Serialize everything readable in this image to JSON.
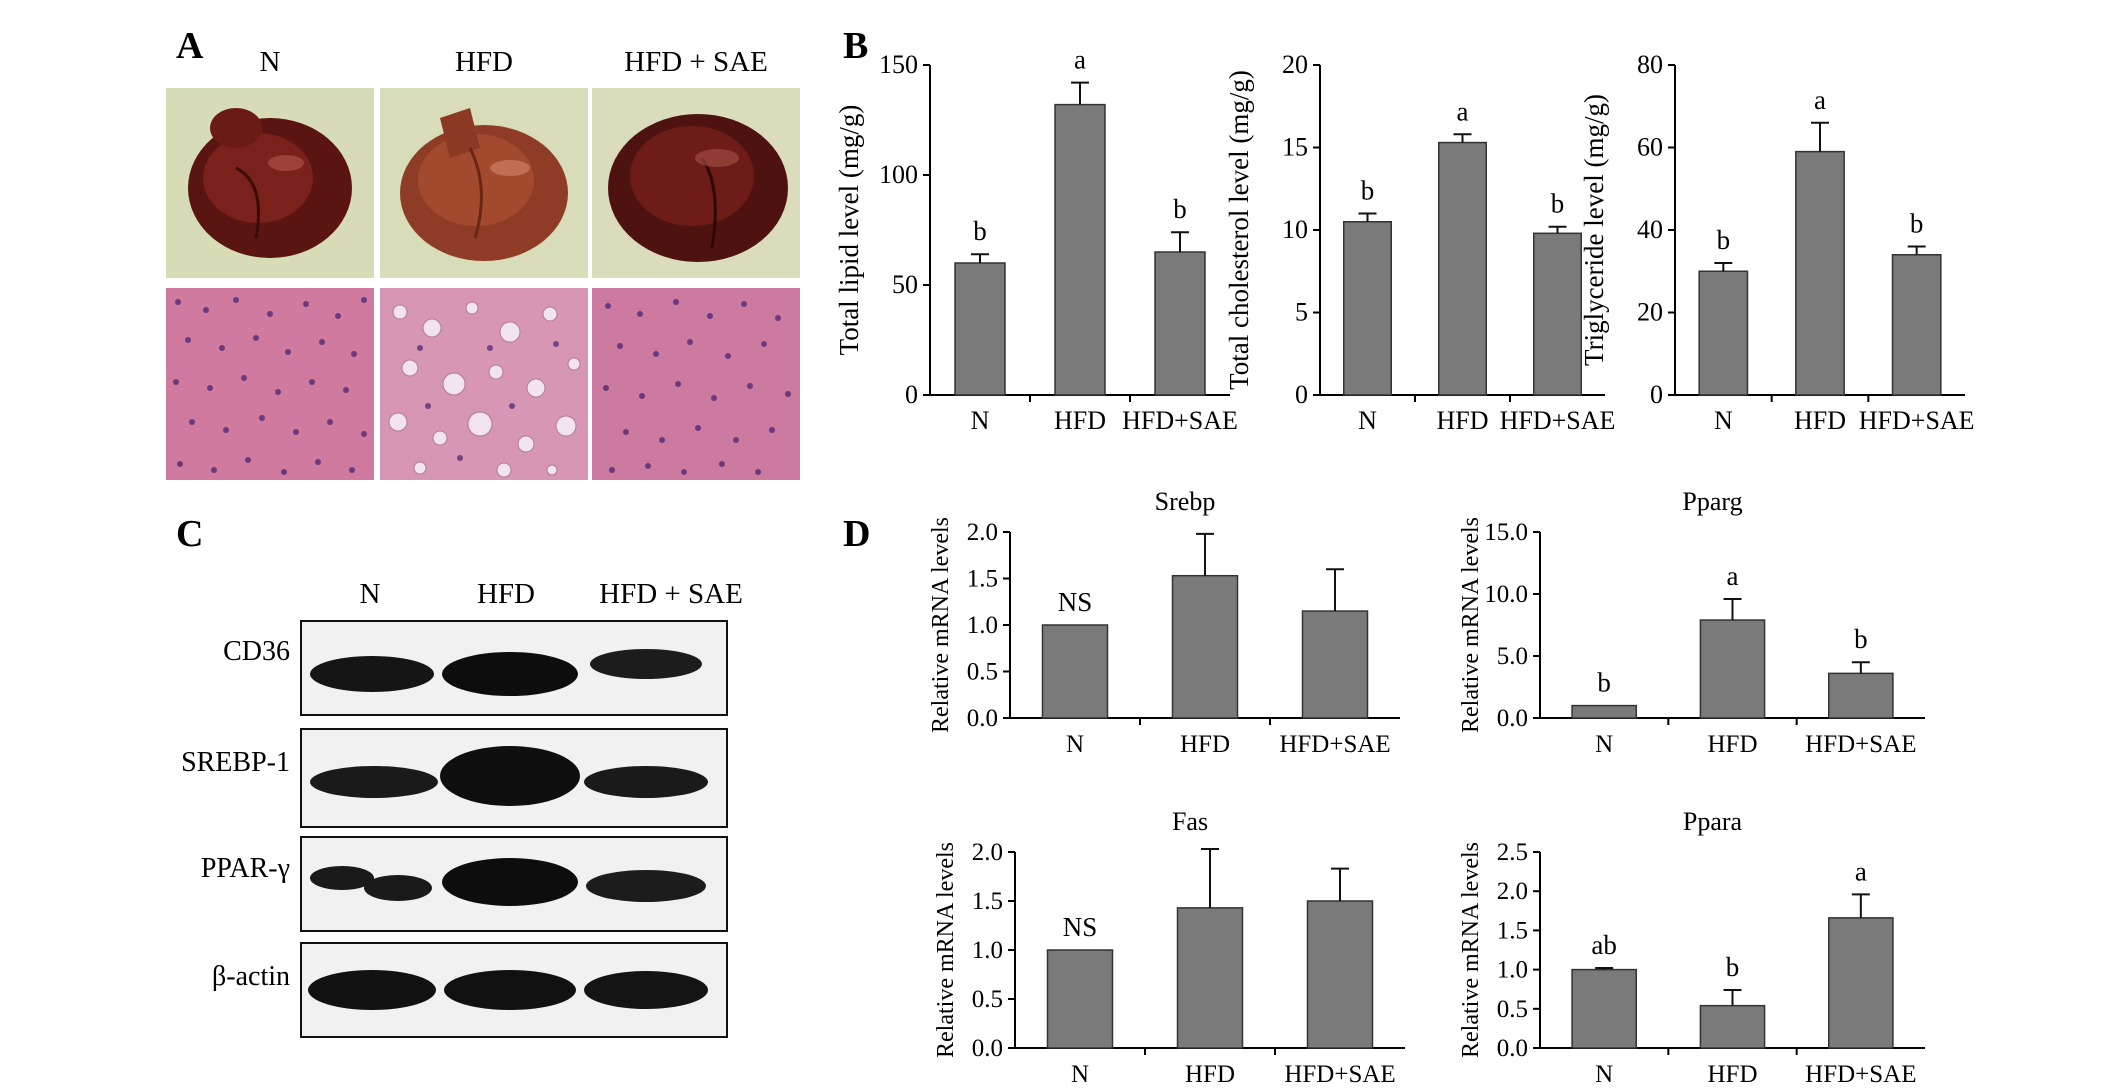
{
  "panels": {
    "A": {
      "letter": "A",
      "columns": [
        "N",
        "HFD",
        "HFD + SAE"
      ]
    },
    "B": {
      "letter": "B"
    },
    "C": {
      "letter": "C",
      "columns": [
        "N",
        "HFD",
        "HFD + SAE"
      ],
      "rows": [
        "CD36",
        "SREBP-1",
        "PPAR-γ",
        "β-actin"
      ]
    },
    "D": {
      "letter": "D"
    }
  },
  "colors": {
    "bar": "#7a7a7a",
    "axis": "#000000"
  },
  "chart_data": [
    {
      "id": "B1",
      "type": "bar",
      "title": "",
      "ylabel": "Total lipid level (mg/g)",
      "xlabel": "",
      "categories": [
        "N",
        "HFD",
        "HFD+SAE"
      ],
      "values": [
        60,
        132,
        65
      ],
      "errors": [
        4,
        10,
        9
      ],
      "labels": [
        "b",
        "a",
        "b"
      ],
      "ylim": [
        0,
        150
      ],
      "yticks": [
        0,
        50,
        100,
        150
      ],
      "ytick_labels": [
        "0",
        "50",
        "100",
        "150"
      ]
    },
    {
      "id": "B2",
      "type": "bar",
      "title": "",
      "ylabel": "Total cholesterol level (mg/g)",
      "xlabel": "",
      "categories": [
        "N",
        "HFD",
        "HFD+SAE"
      ],
      "values": [
        10.5,
        15.3,
        9.8
      ],
      "errors": [
        0.5,
        0.5,
        0.4
      ],
      "labels": [
        "b",
        "a",
        "b"
      ],
      "ylim": [
        0,
        20
      ],
      "yticks": [
        0,
        5,
        10,
        15,
        20
      ],
      "ytick_labels": [
        "0",
        "5",
        "10",
        "15",
        "20"
      ]
    },
    {
      "id": "B3",
      "type": "bar",
      "title": "",
      "ylabel": "Triglyceride level (mg/g)",
      "xlabel": "",
      "categories": [
        "N",
        "HFD",
        "HFD+SAE"
      ],
      "values": [
        30,
        59,
        34
      ],
      "errors": [
        2,
        7,
        2
      ],
      "labels": [
        "b",
        "a",
        "b"
      ],
      "ylim": [
        0,
        80
      ],
      "yticks": [
        0,
        20,
        40,
        60,
        80
      ],
      "ytick_labels": [
        "0",
        "20",
        "40",
        "60",
        "80"
      ]
    },
    {
      "id": "D1",
      "type": "bar",
      "title": "Srebp",
      "ylabel": "Relative mRNA levels",
      "xlabel": "",
      "categories": [
        "N",
        "HFD",
        "HFD+SAE"
      ],
      "values": [
        1.0,
        1.53,
        1.15
      ],
      "errors": [
        0,
        0.45,
        0.45
      ],
      "labels": [
        "NS",
        "",
        ""
      ],
      "ylim": [
        0,
        2.0
      ],
      "yticks": [
        0,
        0.5,
        1.0,
        1.5,
        2.0
      ],
      "ytick_labels": [
        "0.0",
        "0.5",
        "1.0",
        "1.5",
        "2.0"
      ]
    },
    {
      "id": "D2",
      "type": "bar",
      "title": "Pparg",
      "ylabel": "Relative mRNA levels",
      "xlabel": "",
      "categories": [
        "N",
        "HFD",
        "HFD+SAE"
      ],
      "values": [
        1.0,
        7.9,
        3.6
      ],
      "errors": [
        0,
        1.7,
        0.9
      ],
      "labels": [
        "b",
        "a",
        "b"
      ],
      "ylim": [
        0,
        15
      ],
      "yticks": [
        0,
        5,
        10,
        15
      ],
      "ytick_labels": [
        "0.0",
        "5.0",
        "10.0",
        "15.0"
      ]
    },
    {
      "id": "D3",
      "type": "bar",
      "title": "Fas",
      "ylabel": "Relative mRNA levels",
      "xlabel": "",
      "categories": [
        "N",
        "HFD",
        "HFD+SAE"
      ],
      "values": [
        1.0,
        1.43,
        1.5
      ],
      "errors": [
        0,
        0.6,
        0.33
      ],
      "labels": [
        "NS",
        "",
        ""
      ],
      "ylim": [
        0,
        2.0
      ],
      "yticks": [
        0,
        0.5,
        1.0,
        1.5,
        2.0
      ],
      "ytick_labels": [
        "0.0",
        "0.5",
        "1.0",
        "1.5",
        "2.0"
      ]
    },
    {
      "id": "D4",
      "type": "bar",
      "title": "Ppara",
      "ylabel": "Relative mRNA levels",
      "xlabel": "",
      "categories": [
        "N",
        "HFD",
        "HFD+SAE"
      ],
      "values": [
        1.0,
        0.54,
        1.66
      ],
      "errors": [
        0.02,
        0.2,
        0.3
      ],
      "labels": [
        "ab",
        "b",
        "a"
      ],
      "ylim": [
        0,
        2.5
      ],
      "yticks": [
        0,
        0.5,
        1.0,
        1.5,
        2.0,
        2.5
      ],
      "ytick_labels": [
        "0.0",
        "0.5",
        "1.0",
        "1.5",
        "2.0",
        "2.5"
      ]
    }
  ]
}
